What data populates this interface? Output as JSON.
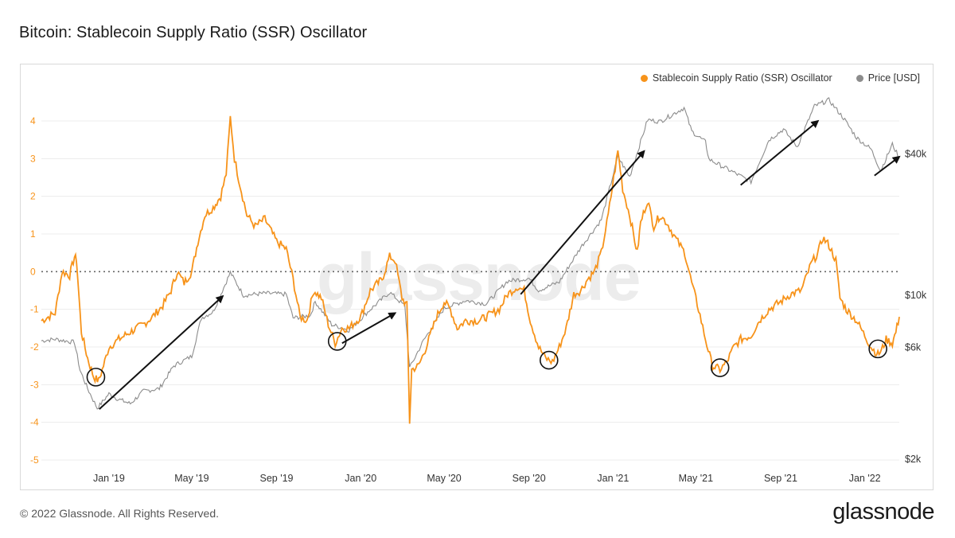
{
  "title": "Bitcoin: Stablecoin Supply Ratio (SSR) Oscillator",
  "legend": {
    "ssr": "Stablecoin Supply Ratio (SSR) Oscillator",
    "price": "Price [USD]"
  },
  "watermark": "glassnode",
  "footer": {
    "copyright": "© 2022 Glassnode. All Rights Reserved.",
    "brand": "glassnode"
  },
  "colors": {
    "ssr": "#f7931a",
    "price": "#8c8c8c",
    "grid": "#ececec",
    "zero_line": "#666666",
    "arrow": "#111111",
    "circle": "#111111"
  },
  "chart_data": {
    "type": "line",
    "title": "Bitcoin: Stablecoin Supply Ratio (SSR) Oscillator",
    "x_range": [
      "2018-09-25",
      "2022-02-20"
    ],
    "x_tick_labels": [
      {
        "date": "2019-01-01",
        "label": "Jan '19"
      },
      {
        "date": "2019-05-01",
        "label": "May '19"
      },
      {
        "date": "2019-09-01",
        "label": "Sep '19"
      },
      {
        "date": "2020-01-01",
        "label": "Jan '20"
      },
      {
        "date": "2020-05-01",
        "label": "May '20"
      },
      {
        "date": "2020-09-01",
        "label": "Sep '20"
      },
      {
        "date": "2021-01-01",
        "label": "Jan '21"
      },
      {
        "date": "2021-05-01",
        "label": "May '21"
      },
      {
        "date": "2021-09-01",
        "label": "Sep '21"
      },
      {
        "date": "2022-01-01",
        "label": "Jan '22"
      }
    ],
    "y_left": {
      "range": [
        -5,
        4.5
      ],
      "ticks": [
        4,
        3,
        2,
        1,
        0,
        -1,
        -2,
        -3,
        -4,
        -5
      ]
    },
    "y_right": {
      "scale": "log",
      "range": [
        2000,
        80000
      ],
      "ticks": [
        {
          "value": 40000,
          "label": "$40k"
        },
        {
          "value": 10000,
          "label": "$10k"
        },
        {
          "value": 6000,
          "label": "$6k"
        },
        {
          "value": 2000,
          "label": "$2k"
        }
      ]
    },
    "series": [
      {
        "name": "Stablecoin Supply Ratio (SSR) Oscillator",
        "axis": "left",
        "points": [
          [
            "2018-09-25",
            -1.3
          ],
          [
            "2018-10-05",
            -1.2
          ],
          [
            "2018-10-15",
            -1.1
          ],
          [
            "2018-10-25",
            0.0
          ],
          [
            "2018-11-05",
            -0.1
          ],
          [
            "2018-11-12",
            0.4
          ],
          [
            "2018-11-15",
            0.3
          ],
          [
            "2018-11-22",
            -1.6
          ],
          [
            "2018-12-01",
            -2.3
          ],
          [
            "2018-12-10",
            -2.8
          ],
          [
            "2018-12-17",
            -2.9
          ],
          [
            "2018-12-24",
            -2.5
          ],
          [
            "2019-01-01",
            -2.0
          ],
          [
            "2019-01-15",
            -1.8
          ],
          [
            "2019-02-01",
            -1.6
          ],
          [
            "2019-02-20",
            -1.4
          ],
          [
            "2019-03-05",
            -1.2
          ],
          [
            "2019-03-20",
            -0.9
          ],
          [
            "2019-04-01",
            -0.5
          ],
          [
            "2019-04-10",
            0.0
          ],
          [
            "2019-04-20",
            -0.3
          ],
          [
            "2019-05-01",
            0.0
          ],
          [
            "2019-05-10",
            0.8
          ],
          [
            "2019-05-20",
            1.5
          ],
          [
            "2019-06-01",
            1.7
          ],
          [
            "2019-06-12",
            2.0
          ],
          [
            "2019-06-20",
            2.6
          ],
          [
            "2019-06-26",
            4.1
          ],
          [
            "2019-07-02",
            3.0
          ],
          [
            "2019-07-10",
            2.3
          ],
          [
            "2019-07-20",
            1.5
          ],
          [
            "2019-08-01",
            1.2
          ],
          [
            "2019-08-15",
            1.4
          ],
          [
            "2019-09-01",
            0.8
          ],
          [
            "2019-09-15",
            0.6
          ],
          [
            "2019-09-25",
            -0.2
          ],
          [
            "2019-10-05",
            -1.2
          ],
          [
            "2019-10-15",
            -1.3
          ],
          [
            "2019-10-25",
            -0.5
          ],
          [
            "2019-11-05",
            -0.7
          ],
          [
            "2019-11-15",
            -1.4
          ],
          [
            "2019-11-25",
            -1.9
          ],
          [
            "2019-12-05",
            -1.5
          ],
          [
            "2019-12-15",
            -1.5
          ],
          [
            "2020-01-01",
            -1.2
          ],
          [
            "2020-01-15",
            -0.5
          ],
          [
            "2020-02-01",
            -0.2
          ],
          [
            "2020-02-12",
            0.4
          ],
          [
            "2020-02-20",
            0.3
          ],
          [
            "2020-03-01",
            -0.7
          ],
          [
            "2020-03-08",
            -0.9
          ],
          [
            "2020-03-12",
            -4.0
          ],
          [
            "2020-03-15",
            -2.6
          ],
          [
            "2020-03-25",
            -2.5
          ],
          [
            "2020-04-05",
            -2.0
          ],
          [
            "2020-04-20",
            -1.2
          ],
          [
            "2020-05-01",
            -0.8
          ],
          [
            "2020-05-10",
            -1.0
          ],
          [
            "2020-05-20",
            -1.5
          ],
          [
            "2020-06-01",
            -1.3
          ],
          [
            "2020-06-20",
            -1.3
          ],
          [
            "2020-07-01",
            -1.2
          ],
          [
            "2020-07-20",
            -1.0
          ],
          [
            "2020-08-01",
            -0.6
          ],
          [
            "2020-08-15",
            -0.4
          ],
          [
            "2020-08-25",
            -0.5
          ],
          [
            "2020-09-03",
            -1.3
          ],
          [
            "2020-09-15",
            -2.0
          ],
          [
            "2020-09-25",
            -2.3
          ],
          [
            "2020-10-05",
            -2.4
          ],
          [
            "2020-10-15",
            -2.0
          ],
          [
            "2020-10-25",
            -1.5
          ],
          [
            "2020-11-05",
            -0.6
          ],
          [
            "2020-11-15",
            -0.5
          ],
          [
            "2020-11-25",
            -0.2
          ],
          [
            "2020-12-05",
            0.0
          ],
          [
            "2020-12-15",
            0.5
          ],
          [
            "2020-12-25",
            1.5
          ],
          [
            "2021-01-02",
            2.5
          ],
          [
            "2021-01-08",
            3.2
          ],
          [
            "2021-01-15",
            2.2
          ],
          [
            "2021-01-25",
            1.5
          ],
          [
            "2021-02-05",
            0.5
          ],
          [
            "2021-02-10",
            1.3
          ],
          [
            "2021-02-20",
            1.9
          ],
          [
            "2021-03-01",
            1.2
          ],
          [
            "2021-03-10",
            1.5
          ],
          [
            "2021-03-20",
            1.3
          ],
          [
            "2021-04-01",
            0.9
          ],
          [
            "2021-04-15",
            0.5
          ],
          [
            "2021-04-25",
            -0.3
          ],
          [
            "2021-05-05",
            -1.0
          ],
          [
            "2021-05-15",
            -1.8
          ],
          [
            "2021-05-25",
            -2.5
          ],
          [
            "2021-06-05",
            -2.6
          ],
          [
            "2021-06-15",
            -2.4
          ],
          [
            "2021-06-25",
            -2.0
          ],
          [
            "2021-07-05",
            -1.8
          ],
          [
            "2021-07-20",
            -1.7
          ],
          [
            "2021-08-01",
            -1.3
          ],
          [
            "2021-08-15",
            -1.0
          ],
          [
            "2021-09-01",
            -0.8
          ],
          [
            "2021-09-15",
            -0.6
          ],
          [
            "2021-10-01",
            -0.5
          ],
          [
            "2021-10-15",
            0.2
          ],
          [
            "2021-10-25",
            0.5
          ],
          [
            "2021-11-01",
            0.9
          ],
          [
            "2021-11-10",
            0.7
          ],
          [
            "2021-11-20",
            0.3
          ],
          [
            "2021-11-26",
            -0.7
          ],
          [
            "2021-12-05",
            -1.0
          ],
          [
            "2021-12-20",
            -1.3
          ],
          [
            "2022-01-01",
            -1.7
          ],
          [
            "2022-01-10",
            -2.0
          ],
          [
            "2022-01-20",
            -2.2
          ],
          [
            "2022-01-25",
            -2.1
          ],
          [
            "2022-02-01",
            -1.8
          ],
          [
            "2022-02-10",
            -1.9
          ],
          [
            "2022-02-15",
            -1.6
          ],
          [
            "2022-02-20",
            -1.2
          ]
        ]
      },
      {
        "name": "Price [USD]",
        "axis": "right",
        "points": [
          [
            "2018-09-25",
            6400
          ],
          [
            "2018-10-15",
            6500
          ],
          [
            "2018-11-12",
            6300
          ],
          [
            "2018-11-20",
            4800
          ],
          [
            "2018-12-01",
            4000
          ],
          [
            "2018-12-15",
            3300
          ],
          [
            "2019-01-01",
            3800
          ],
          [
            "2019-01-15",
            3600
          ],
          [
            "2019-02-01",
            3450
          ],
          [
            "2019-02-20",
            3900
          ],
          [
            "2019-03-15",
            4000
          ],
          [
            "2019-04-05",
            5000
          ],
          [
            "2019-05-01",
            5500
          ],
          [
            "2019-05-15",
            8000
          ],
          [
            "2019-06-01",
            8500
          ],
          [
            "2019-06-26",
            12500
          ],
          [
            "2019-07-15",
            10000
          ],
          [
            "2019-08-15",
            10200
          ],
          [
            "2019-09-15",
            10100
          ],
          [
            "2019-09-25",
            8000
          ],
          [
            "2019-10-20",
            8200
          ],
          [
            "2019-10-27",
            9400
          ],
          [
            "2019-11-20",
            7500
          ],
          [
            "2019-12-15",
            7100
          ],
          [
            "2020-01-15",
            8700
          ],
          [
            "2020-02-12",
            10300
          ],
          [
            "2020-03-05",
            9000
          ],
          [
            "2020-03-12",
            4900
          ],
          [
            "2020-04-01",
            6400
          ],
          [
            "2020-05-01",
            8800
          ],
          [
            "2020-06-01",
            9500
          ],
          [
            "2020-07-01",
            9200
          ],
          [
            "2020-08-01",
            11500
          ],
          [
            "2020-09-01",
            11800
          ],
          [
            "2020-09-15",
            10500
          ],
          [
            "2020-10-15",
            11400
          ],
          [
            "2020-11-15",
            16000
          ],
          [
            "2020-12-15",
            21000
          ],
          [
            "2021-01-08",
            39000
          ],
          [
            "2021-01-25",
            32000
          ],
          [
            "2021-02-20",
            56000
          ],
          [
            "2021-03-10",
            55000
          ],
          [
            "2021-04-14",
            63000
          ],
          [
            "2021-04-25",
            50000
          ],
          [
            "2021-05-15",
            45000
          ],
          [
            "2021-05-20",
            38000
          ],
          [
            "2021-06-20",
            34000
          ],
          [
            "2021-07-20",
            30500
          ],
          [
            "2021-08-15",
            46000
          ],
          [
            "2021-09-05",
            51000
          ],
          [
            "2021-09-25",
            43000
          ],
          [
            "2021-10-20",
            64000
          ],
          [
            "2021-11-10",
            68000
          ],
          [
            "2021-12-01",
            57000
          ],
          [
            "2021-12-20",
            47000
          ],
          [
            "2022-01-10",
            42000
          ],
          [
            "2022-01-24",
            34000
          ],
          [
            "2022-02-10",
            44000
          ],
          [
            "2022-02-20",
            38500
          ]
        ]
      }
    ],
    "annotations": {
      "circles": [
        {
          "date": "2018-12-13",
          "value": -2.8
        },
        {
          "date": "2019-11-28",
          "value": -1.85
        },
        {
          "date": "2020-09-30",
          "value": -2.35
        },
        {
          "date": "2021-06-05",
          "value": -2.55
        },
        {
          "date": "2022-01-20",
          "value": -2.05
        }
      ],
      "arrows": [
        {
          "from": {
            "date": "2018-12-18",
            "value": -3.65
          },
          "to": {
            "date": "2019-06-15",
            "value": -0.65
          }
        },
        {
          "from": {
            "date": "2019-12-05",
            "value": -1.9
          },
          "to": {
            "date": "2020-02-20",
            "value": -1.1
          }
        },
        {
          "from": {
            "date": "2020-08-20",
            "value": -0.6
          },
          "to": {
            "date": "2021-02-15",
            "value": 3.2
          }
        },
        {
          "from": {
            "date": "2021-07-05",
            "value": 2.3
          },
          "to": {
            "date": "2021-10-25",
            "value": 4.0
          }
        },
        {
          "from": {
            "date": "2022-01-15",
            "value": 2.55
          },
          "to": {
            "date": "2022-02-20",
            "value": 3.05
          }
        }
      ]
    }
  }
}
